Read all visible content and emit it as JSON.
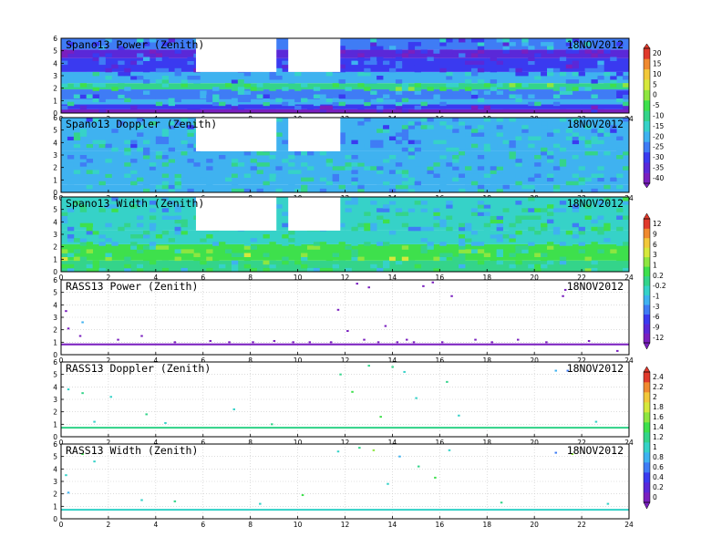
{
  "chart_data": [
    {
      "type": "heatmap",
      "title": "Spano13 Power (Zenith)",
      "date": "18NOV2012",
      "xlim": [
        0,
        24
      ],
      "ylim": [
        0,
        6
      ],
      "x_ticks": [
        "0",
        "2",
        "4",
        "6",
        "8",
        "10",
        "12",
        "14",
        "16",
        "18",
        "20",
        "22",
        "24"
      ],
      "y_ticks": [
        "0",
        "1",
        "2",
        "3",
        "4",
        "5",
        "6"
      ],
      "grid": true,
      "colorbar": [
        "-40",
        "-35",
        "-30",
        "-25",
        "-20",
        "-15",
        "-10",
        "-5",
        "0",
        "5",
        "10",
        "15",
        "20"
      ],
      "colorbar_range": [
        -40,
        20
      ],
      "data_gaps": [
        {
          "x": [
            5.7,
            9.1
          ],
          "y": [
            3.3,
            6.0
          ]
        },
        {
          "x": [
            9.6,
            11.8
          ],
          "y": [
            3.3,
            6.0
          ]
        }
      ],
      "layers": [
        {
          "y": [
            0.0,
            0.3
          ],
          "value": -38
        },
        {
          "y": [
            0.3,
            0.7
          ],
          "value": -30
        },
        {
          "y": [
            0.7,
            1.1
          ],
          "value": -17
        },
        {
          "y": [
            1.1,
            1.9
          ],
          "value": -22
        },
        {
          "y": [
            1.9,
            2.4
          ],
          "value": -9
        },
        {
          "y": [
            2.4,
            3.3
          ],
          "value": -20
        },
        {
          "y": [
            3.3,
            4.4
          ],
          "value": -28
        },
        {
          "y": [
            4.4,
            5.1
          ],
          "value": -33
        },
        {
          "y": [
            5.1,
            6.0
          ],
          "value": -23
        }
      ]
    },
    {
      "type": "heatmap",
      "title": "Spano13 Doppler (Zenith)",
      "date": "18NOV2012",
      "xlim": [
        0,
        24
      ],
      "ylim": [
        0,
        6
      ],
      "x_ticks": [
        "0",
        "2",
        "4",
        "6",
        "8",
        "10",
        "12",
        "14",
        "16",
        "18",
        "20",
        "22",
        "24"
      ],
      "y_ticks": [
        "0",
        "1",
        "2",
        "3",
        "4",
        "5",
        "6"
      ],
      "grid": true,
      "colorbar": [
        "-40",
        "-35",
        "-30",
        "-25",
        "-20",
        "-15",
        "-10",
        "-5",
        "0",
        "5",
        "10",
        "15",
        "20"
      ],
      "colorbar_range": [
        -40,
        20
      ],
      "data_gaps": [
        {
          "x": [
            5.7,
            9.1
          ],
          "y": [
            3.3,
            6.0
          ]
        },
        {
          "x": [
            9.6,
            11.8
          ],
          "y": [
            3.3,
            6.0
          ]
        }
      ],
      "layers": [
        {
          "y": [
            0.0,
            0.6
          ],
          "value": -18
        },
        {
          "y": [
            0.6,
            3.3
          ],
          "value": -17
        },
        {
          "y": [
            3.3,
            6.0
          ],
          "value": -19
        }
      ]
    },
    {
      "type": "heatmap",
      "title": "Spano13 Width (Zenith)",
      "date": "18NOV2012",
      "xlim": [
        0,
        24
      ],
      "ylim": [
        0,
        6
      ],
      "x_ticks": [
        "0",
        "2",
        "4",
        "6",
        "8",
        "10",
        "12",
        "14",
        "16",
        "18",
        "20",
        "22",
        "24"
      ],
      "y_ticks": [
        "0",
        "1",
        "2",
        "3",
        "4",
        "5",
        "6"
      ],
      "grid": true,
      "colorbar": [
        "-12",
        "-9",
        "-6",
        "-3",
        "-1",
        "-0.2",
        "0.2",
        "1",
        "3",
        "6",
        "9",
        "12"
      ],
      "colorbar_range": [
        -12,
        12
      ],
      "data_gaps": [
        {
          "x": [
            5.7,
            9.1
          ],
          "y": [
            3.3,
            6.0
          ]
        },
        {
          "x": [
            9.6,
            11.8
          ],
          "y": [
            3.3,
            6.0
          ]
        }
      ],
      "layers": [
        {
          "y": [
            0.0,
            0.9
          ],
          "value": -0.5
        },
        {
          "y": [
            0.9,
            2.2
          ],
          "value": 1.5
        },
        {
          "y": [
            2.2,
            3.3
          ],
          "value": -1.5
        },
        {
          "y": [
            3.3,
            6.0
          ],
          "value": -2
        }
      ]
    },
    {
      "type": "scatter",
      "title": "RASS13 Power (Zenith)",
      "date": "18NOV2012",
      "xlim": [
        0,
        24
      ],
      "ylim": [
        0,
        6
      ],
      "x_ticks": [
        "0",
        "2",
        "4",
        "6",
        "8",
        "10",
        "12",
        "14",
        "16",
        "18",
        "20",
        "22",
        "24"
      ],
      "y_ticks": [
        "0",
        "1",
        "2",
        "3",
        "4",
        "5",
        "6"
      ],
      "grid": true,
      "colorbar": [
        "-12",
        "-9",
        "-6",
        "-3",
        "-1",
        "-0.2",
        "0.2",
        "1",
        "3",
        "6",
        "9",
        "12"
      ],
      "colorbar_range": [
        -12,
        12
      ],
      "band": {
        "y": [
          0.75,
          0.9
        ],
        "value": -12
      },
      "points": [
        {
          "x": 0.2,
          "y": 3.5,
          "v": -12
        },
        {
          "x": 0.3,
          "y": 2.1,
          "v": -12
        },
        {
          "x": 0.8,
          "y": 1.5,
          "v": -12
        },
        {
          "x": 0.9,
          "y": 2.6,
          "v": -3
        },
        {
          "x": 2.4,
          "y": 1.2,
          "v": -12
        },
        {
          "x": 3.4,
          "y": 1.5,
          "v": -12
        },
        {
          "x": 4.8,
          "y": 1.0,
          "v": -12
        },
        {
          "x": 6.3,
          "y": 1.1,
          "v": -12
        },
        {
          "x": 7.1,
          "y": 1.0,
          "v": -12
        },
        {
          "x": 8.1,
          "y": 1.0,
          "v": -12
        },
        {
          "x": 9.0,
          "y": 1.1,
          "v": -12
        },
        {
          "x": 9.8,
          "y": 1.0,
          "v": -12
        },
        {
          "x": 10.5,
          "y": 1.0,
          "v": -12
        },
        {
          "x": 11.4,
          "y": 1.0,
          "v": -12
        },
        {
          "x": 11.7,
          "y": 3.6,
          "v": -12
        },
        {
          "x": 12.1,
          "y": 1.9,
          "v": -12
        },
        {
          "x": 12.5,
          "y": 5.7,
          "v": -12
        },
        {
          "x": 12.8,
          "y": 1.2,
          "v": -12
        },
        {
          "x": 13.0,
          "y": 5.4,
          "v": -12
        },
        {
          "x": 13.4,
          "y": 1.0,
          "v": -12
        },
        {
          "x": 13.7,
          "y": 2.3,
          "v": -12
        },
        {
          "x": 14.2,
          "y": 1.0,
          "v": -12
        },
        {
          "x": 14.6,
          "y": 1.2,
          "v": -12
        },
        {
          "x": 14.9,
          "y": 1.0,
          "v": -12
        },
        {
          "x": 15.3,
          "y": 5.5,
          "v": -12
        },
        {
          "x": 15.7,
          "y": 5.8,
          "v": -12
        },
        {
          "x": 16.1,
          "y": 1.0,
          "v": -12
        },
        {
          "x": 16.5,
          "y": 4.7,
          "v": -12
        },
        {
          "x": 17.5,
          "y": 1.2,
          "v": -12
        },
        {
          "x": 18.2,
          "y": 1.0,
          "v": -12
        },
        {
          "x": 19.3,
          "y": 1.2,
          "v": -12
        },
        {
          "x": 20.5,
          "y": 1.0,
          "v": -12
        },
        {
          "x": 21.2,
          "y": 4.7,
          "v": -12
        },
        {
          "x": 21.3,
          "y": 5.2,
          "v": -12
        },
        {
          "x": 22.3,
          "y": 1.1,
          "v": -12
        },
        {
          "x": 23.5,
          "y": 0.3,
          "v": -12
        }
      ]
    },
    {
      "type": "scatter",
      "title": "RASS13 Doppler (Zenith)",
      "date": "18NOV2012",
      "xlim": [
        0,
        24
      ],
      "ylim": [
        0,
        6
      ],
      "x_ticks": [
        "0",
        "2",
        "4",
        "6",
        "8",
        "10",
        "12",
        "14",
        "16",
        "18",
        "20",
        "22",
        "24"
      ],
      "y_ticks": [
        "0",
        "1",
        "2",
        "3",
        "4",
        "5",
        "6"
      ],
      "grid": true,
      "colorbar": [
        "0",
        "0.2",
        "0.4",
        "0.6",
        "0.8",
        "1",
        "1.2",
        "1.4",
        "1.6",
        "1.8",
        "2",
        "2.2",
        "2.4"
      ],
      "colorbar_range": [
        0,
        2.4
      ],
      "band": {
        "y": [
          0.65,
          0.8
        ],
        "value": 1.2
      },
      "points": [
        {
          "x": 0.3,
          "y": 3.8,
          "v": 1.0
        },
        {
          "x": 0.9,
          "y": 3.5,
          "v": 1.2
        },
        {
          "x": 1.4,
          "y": 1.2,
          "v": 1.1
        },
        {
          "x": 2.1,
          "y": 3.2,
          "v": 1.0
        },
        {
          "x": 3.6,
          "y": 1.8,
          "v": 1.2
        },
        {
          "x": 4.4,
          "y": 1.1,
          "v": 1.1
        },
        {
          "x": 7.3,
          "y": 2.2,
          "v": 1.0
        },
        {
          "x": 8.9,
          "y": 1.0,
          "v": 1.2
        },
        {
          "x": 11.8,
          "y": 5.0,
          "v": 1.2
        },
        {
          "x": 12.3,
          "y": 3.6,
          "v": 1.3
        },
        {
          "x": 13.0,
          "y": 5.7,
          "v": 1.2
        },
        {
          "x": 13.5,
          "y": 1.6,
          "v": 1.4
        },
        {
          "x": 14.0,
          "y": 5.6,
          "v": 1.2
        },
        {
          "x": 14.5,
          "y": 5.2,
          "v": 1.0
        },
        {
          "x": 15.0,
          "y": 3.1,
          "v": 1.1
        },
        {
          "x": 16.3,
          "y": 4.4,
          "v": 1.2
        },
        {
          "x": 16.8,
          "y": 1.7,
          "v": 1.1
        },
        {
          "x": 20.9,
          "y": 5.3,
          "v": 0.8
        },
        {
          "x": 21.4,
          "y": 5.3,
          "v": 0.7
        },
        {
          "x": 22.6,
          "y": 1.2,
          "v": 1.1
        }
      ]
    },
    {
      "type": "scatter",
      "title": "RASS13 Width (Zenith)",
      "date": "18NOV2012",
      "xlim": [
        0,
        24
      ],
      "ylim": [
        0,
        6
      ],
      "x_ticks": [
        "0",
        "2",
        "4",
        "6",
        "8",
        "10",
        "12",
        "14",
        "16",
        "18",
        "20",
        "22",
        "24"
      ],
      "y_ticks": [
        "0",
        "1",
        "2",
        "3",
        "4",
        "5",
        "6"
      ],
      "grid": true,
      "colorbar": [
        "0",
        "0.2",
        "0.4",
        "0.6",
        "0.8",
        "1",
        "1.2",
        "1.4",
        "1.6",
        "1.8",
        "2",
        "2.2",
        "2.4"
      ],
      "colorbar_range": [
        0,
        2.4
      ],
      "band": {
        "y": [
          0.65,
          0.8
        ],
        "value": 1.1
      },
      "points": [
        {
          "x": 0.2,
          "y": 3.5,
          "v": 1.0
        },
        {
          "x": 0.3,
          "y": 2.1,
          "v": 0.9
        },
        {
          "x": 0.9,
          "y": 5.2,
          "v": 1.4
        },
        {
          "x": 1.4,
          "y": 4.6,
          "v": 1.1
        },
        {
          "x": 3.4,
          "y": 1.5,
          "v": 1.0
        },
        {
          "x": 4.8,
          "y": 1.4,
          "v": 1.2
        },
        {
          "x": 8.4,
          "y": 1.2,
          "v": 1.1
        },
        {
          "x": 10.2,
          "y": 1.9,
          "v": 1.3
        },
        {
          "x": 11.7,
          "y": 5.4,
          "v": 1.1
        },
        {
          "x": 12.6,
          "y": 5.7,
          "v": 1.2
        },
        {
          "x": 13.2,
          "y": 5.5,
          "v": 1.5
        },
        {
          "x": 13.8,
          "y": 2.8,
          "v": 1.1
        },
        {
          "x": 14.3,
          "y": 5.0,
          "v": 0.9
        },
        {
          "x": 15.1,
          "y": 4.2,
          "v": 1.2
        },
        {
          "x": 15.8,
          "y": 3.3,
          "v": 1.3
        },
        {
          "x": 16.4,
          "y": 5.5,
          "v": 1.1
        },
        {
          "x": 18.6,
          "y": 1.3,
          "v": 1.2
        },
        {
          "x": 20.9,
          "y": 5.3,
          "v": 0.7
        },
        {
          "x": 21.6,
          "y": 5.2,
          "v": 1.6
        },
        {
          "x": 23.1,
          "y": 1.2,
          "v": 1.0
        }
      ]
    }
  ]
}
